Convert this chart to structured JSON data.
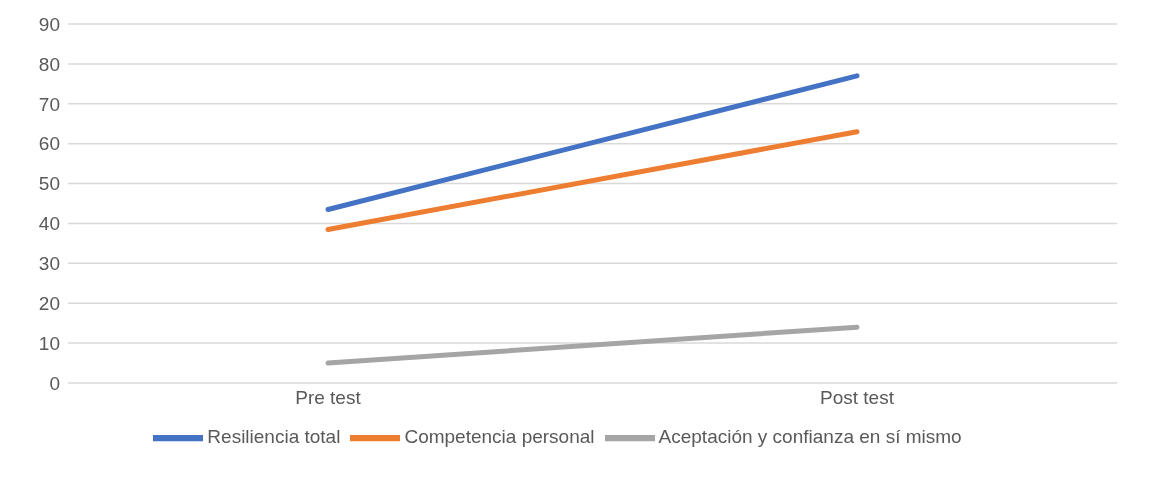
{
  "chart_data": {
    "type": "line",
    "categories": [
      "Pre test",
      "Post test"
    ],
    "series": [
      {
        "name": "Resiliencia total",
        "color": "#4472c4",
        "values": [
          43.5,
          77
        ]
      },
      {
        "name": "Competencia personal",
        "color": "#ed7d31",
        "values": [
          38.5,
          63
        ]
      },
      {
        "name": "Aceptación y confianza en sí mismo",
        "color": "#a5a5a5",
        "values": [
          5,
          14
        ]
      }
    ],
    "ylim": [
      0,
      90
    ],
    "yticks": [
      0,
      10,
      20,
      30,
      40,
      50,
      60,
      70,
      80,
      90
    ],
    "grid": "y",
    "legend": "bottom",
    "marker": "none",
    "line_style": "solid"
  }
}
